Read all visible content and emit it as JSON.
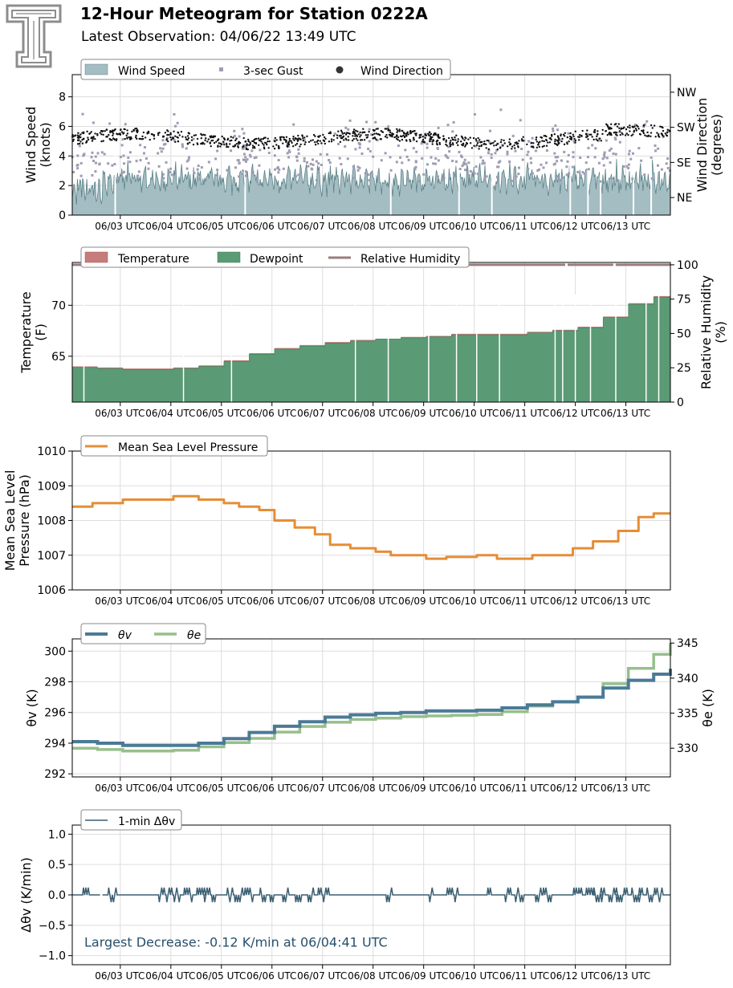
{
  "header": {
    "title": "12-Hour Meteogram for Station 0222A",
    "subtitle": "Latest Observation: 04/06/22 13:49 UTC",
    "logo_text": "T"
  },
  "colors": {
    "wind_fill": "#a4bdc2",
    "wind_line": "#5b8288",
    "gust": "#9f9cb4",
    "direction": "#111111",
    "temperature": "#c77c7c",
    "dewpoint": "#5a9a74",
    "humidity": "#9a7c7c",
    "pressure": "#e58e37",
    "theta_v": "#4b7a96",
    "theta_e": "#97bf8c",
    "dtheta": "#3a5f72",
    "annotation": "#27506b",
    "grid": "#dddddd"
  },
  "chart_data": [
    {
      "type": "area",
      "panel": "wind",
      "ylabel": "Wind Speed\n(knots)",
      "ylabel2": "Wind Direction\n(degrees)",
      "ylim": [
        0,
        9.5
      ],
      "y_ticks": [
        0,
        2,
        4,
        6,
        8
      ],
      "y2_ticks": [
        {
          "label": "NE",
          "value": 45
        },
        {
          "label": "SE",
          "value": 135
        },
        {
          "label": "SW",
          "value": 225
        },
        {
          "label": "NW",
          "value": 315
        }
      ],
      "y2lim": [
        0,
        360
      ],
      "x_tick_labels": [
        "06/03 UTC",
        "06/04 UTC",
        "06/05 UTC",
        "06/06 UTC",
        "06/07 UTC",
        "06/08 UTC",
        "06/09 UTC",
        "06/10 UTC",
        "06/11 UTC",
        "06/12 UTC",
        "06/13 UTC"
      ],
      "legend": [
        "Wind Speed",
        "3-sec Gust",
        "Wind Direction"
      ],
      "grid": true,
      "series": [
        {
          "name": "Wind Speed",
          "kind": "area",
          "typical_range": [
            1.2,
            4.0
          ]
        },
        {
          "name": "3-sec Gust",
          "kind": "scatter",
          "typical_range": [
            2.0,
            7.6
          ]
        },
        {
          "name": "Wind Direction",
          "kind": "scatter",
          "typical_range": [
            160,
            240
          ]
        }
      ]
    },
    {
      "type": "area",
      "panel": "temperature",
      "ylabel": "Temperature\n(F)",
      "ylabel2": "Relative Humidity\n(%)",
      "ylim": [
        60.5,
        74.2
      ],
      "y_ticks": [
        65,
        70
      ],
      "y2lim": [
        0,
        101.7
      ],
      "y2_ticks": [
        0,
        25,
        50,
        75,
        100
      ],
      "x_tick_labels": [
        "06/03 UTC",
        "06/04 UTC",
        "06/05 UTC",
        "06/06 UTC",
        "06/07 UTC",
        "06/08 UTC",
        "06/09 UTC",
        "06/10 UTC",
        "06/11 UTC",
        "06/12 UTC",
        "06/13 UTC"
      ],
      "legend": [
        "Temperature",
        "Dewpoint",
        "Relative Humidity"
      ],
      "grid": true,
      "x": [
        0,
        0.5,
        1,
        1.5,
        2,
        2.5,
        3,
        3.5,
        4,
        4.5,
        5,
        5.5,
        6,
        6.5,
        7,
        7.5,
        8,
        8.5,
        9,
        9.5,
        10,
        10.5,
        11,
        11.5,
        11.83
      ],
      "series": [
        {
          "name": "Temperature",
          "values": [
            64.0,
            63.9,
            63.8,
            63.8,
            63.9,
            64.1,
            64.6,
            65.3,
            65.8,
            66.1,
            66.4,
            66.6,
            66.7,
            66.9,
            67.0,
            67.2,
            67.2,
            67.2,
            67.4,
            67.6,
            67.9,
            68.9,
            70.2,
            70.9,
            71.2
          ]
        },
        {
          "name": "Dewpoint",
          "values": [
            63.9,
            63.8,
            63.7,
            63.7,
            63.8,
            64.0,
            64.5,
            65.2,
            65.7,
            66.0,
            66.3,
            66.5,
            66.7,
            66.8,
            66.9,
            67.1,
            67.1,
            67.1,
            67.3,
            67.5,
            67.8,
            68.8,
            70.1,
            70.8,
            71.1
          ]
        },
        {
          "name": "Relative Humidity",
          "values": [
            100,
            100,
            100,
            100,
            100,
            100,
            100,
            100,
            100,
            100,
            100,
            100,
            100,
            100,
            100,
            100,
            100,
            100,
            100,
            100,
            100,
            100,
            100,
            100,
            100
          ]
        }
      ]
    },
    {
      "type": "line",
      "panel": "pressure",
      "ylabel": "Mean Sea Level\nPressure (hPa)",
      "ylim": [
        1006,
        1010
      ],
      "y_ticks": [
        1006,
        1007,
        1008,
        1009,
        1010
      ],
      "x_tick_labels": [
        "06/03 UTC",
        "06/04 UTC",
        "06/05 UTC",
        "06/06 UTC",
        "06/07 UTC",
        "06/08 UTC",
        "06/09 UTC",
        "06/10 UTC",
        "06/11 UTC",
        "06/12 UTC",
        "06/13 UTC"
      ],
      "legend": [
        "Mean Sea Level Pressure"
      ],
      "grid": true,
      "series": [
        {
          "name": "Mean Sea Level Pressure",
          "x": [
            0,
            0.4,
            0.6,
            1.0,
            1.4,
            2.0,
            2.5,
            3.0,
            3.3,
            3.7,
            4.0,
            4.4,
            4.8,
            5.1,
            5.5,
            6.0,
            6.3,
            6.7,
            7.0,
            7.4,
            7.7,
            8.0,
            8.4,
            8.8,
            9.1,
            9.5,
            9.9,
            10.3,
            10.8,
            11.2,
            11.5,
            11.83
          ],
          "values": [
            1008.4,
            1008.5,
            1008.5,
            1008.6,
            1008.6,
            1008.7,
            1008.6,
            1008.5,
            1008.4,
            1008.3,
            1008.0,
            1007.8,
            1007.6,
            1007.3,
            1007.2,
            1007.1,
            1007.0,
            1007.0,
            1006.9,
            1006.95,
            1006.95,
            1007.0,
            1006.9,
            1006.9,
            1007.0,
            1007.0,
            1007.2,
            1007.4,
            1007.7,
            1008.1,
            1008.2,
            1008.2
          ]
        }
      ]
    },
    {
      "type": "line",
      "panel": "theta",
      "ylabel": "θv (K)",
      "ylabel2": "θe (K)",
      "ylim": [
        291.8,
        300.8
      ],
      "y_ticks": [
        292,
        294,
        296,
        298,
        300
      ],
      "y2lim": [
        325.9,
        345.6
      ],
      "y2_ticks": [
        330,
        335,
        340,
        345
      ],
      "x_tick_labels": [
        "06/03 UTC",
        "06/04 UTC",
        "06/05 UTC",
        "06/06 UTC",
        "06/07 UTC",
        "06/08 UTC",
        "06/09 UTC",
        "06/10 UTC",
        "06/11 UTC",
        "06/12 UTC",
        "06/13 UTC"
      ],
      "legend": [
        "θv",
        "θe"
      ],
      "grid": true,
      "series": [
        {
          "name": "θv",
          "x": [
            0,
            0.5,
            1.0,
            1.5,
            2.0,
            2.5,
            3.0,
            3.5,
            4.0,
            4.5,
            5.0,
            5.5,
            6.0,
            6.5,
            7.0,
            7.5,
            8.0,
            8.5,
            9.0,
            9.5,
            10.0,
            10.5,
            11.0,
            11.5,
            11.83
          ],
          "values": [
            294.1,
            294.0,
            293.85,
            293.85,
            293.85,
            294.0,
            294.3,
            294.7,
            295.1,
            295.4,
            295.7,
            295.85,
            295.95,
            296.0,
            296.1,
            296.1,
            296.15,
            296.3,
            296.5,
            296.7,
            297.0,
            297.6,
            298.1,
            298.5,
            298.85
          ]
        },
        {
          "name": "θe",
          "x": [
            0,
            0.5,
            1.0,
            1.5,
            2.0,
            2.5,
            3.0,
            3.5,
            4.0,
            4.5,
            5.0,
            5.5,
            6.0,
            6.5,
            7.0,
            7.5,
            8.0,
            8.5,
            9.0,
            9.5,
            10.0,
            10.5,
            11.0,
            11.5,
            11.83
          ],
          "values": [
            330.0,
            329.8,
            329.6,
            329.6,
            329.7,
            330.2,
            330.8,
            331.4,
            332.3,
            333.1,
            333.7,
            334.1,
            334.3,
            334.5,
            334.6,
            334.7,
            334.8,
            335.2,
            336.0,
            336.6,
            337.3,
            339.2,
            341.4,
            343.4,
            345.0
          ]
        }
      ]
    },
    {
      "type": "line",
      "panel": "dtheta",
      "ylabel": "Δθv (K/min)",
      "ylim": [
        -1.15,
        1.15
      ],
      "y_ticks": [
        -1.0,
        -0.5,
        0.0,
        0.5,
        1.0
      ],
      "x_tick_labels": [
        "06/03 UTC",
        "06/04 UTC",
        "06/05 UTC",
        "06/06 UTC",
        "06/07 UTC",
        "06/08 UTC",
        "06/09 UTC",
        "06/10 UTC",
        "06/11 UTC",
        "06/12 UTC",
        "06/13 UTC"
      ],
      "legend": [
        "1-min Δθv"
      ],
      "annotation": "Largest Decrease: -0.12 K/min at 06/04:41 UTC",
      "grid": true,
      "series": [
        {
          "name": "1-min Δθv",
          "spike_amplitude": 0.12
        }
      ]
    }
  ]
}
